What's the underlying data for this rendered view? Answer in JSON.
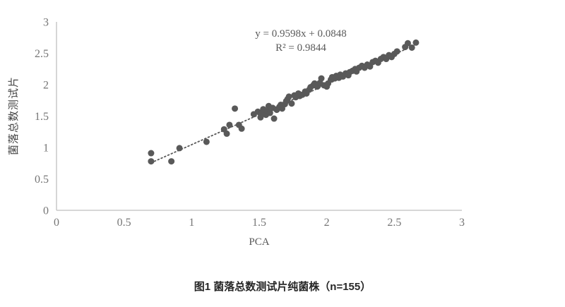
{
  "figure": {
    "caption": "图1 菌落总数测试片纯菌株（n=155）"
  },
  "chart_data": {
    "type": "scatter",
    "title": "",
    "xlabel": "PCA",
    "ylabel": "菌落总数测试片",
    "xlim": [
      0,
      3
    ],
    "ylim": [
      0,
      3
    ],
    "xticks": [
      "0",
      "0.5",
      "1",
      "1.5",
      "2",
      "2.5",
      "3"
    ],
    "yticks": [
      "0",
      "0.5",
      "1",
      "1.5",
      "2",
      "2.5",
      "3"
    ],
    "grid": false,
    "legend": "none",
    "annotation": {
      "equation": "y = 0.9598x + 0.0848",
      "r_squared": "R² = 0.9844"
    },
    "trendline": {
      "slope": 0.9598,
      "intercept": 0.0848,
      "x_start": 0.7,
      "x_end": 2.68,
      "style": "dotted"
    },
    "points": [
      [
        0.7,
        0.91
      ],
      [
        0.7,
        0.78
      ],
      [
        0.85,
        0.78
      ],
      [
        0.91,
        0.99
      ],
      [
        1.11,
        1.09
      ],
      [
        1.24,
        1.29
      ],
      [
        1.26,
        1.22
      ],
      [
        1.28,
        1.36
      ],
      [
        1.35,
        1.36
      ],
      [
        1.37,
        1.3
      ],
      [
        1.32,
        1.62
      ],
      [
        1.46,
        1.53
      ],
      [
        1.49,
        1.57
      ],
      [
        1.51,
        1.48
      ],
      [
        1.52,
        1.55
      ],
      [
        1.53,
        1.61
      ],
      [
        1.55,
        1.52
      ],
      [
        1.56,
        1.58
      ],
      [
        1.57,
        1.66
      ],
      [
        1.58,
        1.55
      ],
      [
        1.6,
        1.63
      ],
      [
        1.61,
        1.46
      ],
      [
        1.63,
        1.6
      ],
      [
        1.65,
        1.65
      ],
      [
        1.66,
        1.68
      ],
      [
        1.67,
        1.62
      ],
      [
        1.69,
        1.69
      ],
      [
        1.7,
        1.74
      ],
      [
        1.71,
        1.77
      ],
      [
        1.72,
        1.81
      ],
      [
        1.74,
        1.7
      ],
      [
        1.76,
        1.83
      ],
      [
        1.77,
        1.8
      ],
      [
        1.79,
        1.86
      ],
      [
        1.8,
        1.82
      ],
      [
        1.82,
        1.84
      ],
      [
        1.84,
        1.89
      ],
      [
        1.85,
        1.86
      ],
      [
        1.87,
        1.92
      ],
      [
        1.88,
        1.96
      ],
      [
        1.9,
        1.99
      ],
      [
        1.91,
        2.02
      ],
      [
        1.93,
        1.97
      ],
      [
        1.94,
        2.0
      ],
      [
        1.95,
        2.03
      ],
      [
        1.96,
        2.1
      ],
      [
        1.98,
        1.99
      ],
      [
        2.0,
        1.97
      ],
      [
        2.01,
        2.02
      ],
      [
        2.03,
        2.08
      ],
      [
        2.04,
        2.12
      ],
      [
        2.06,
        2.1
      ],
      [
        2.07,
        2.14
      ],
      [
        2.09,
        2.11
      ],
      [
        2.1,
        2.16
      ],
      [
        2.12,
        2.13
      ],
      [
        2.14,
        2.18
      ],
      [
        2.16,
        2.15
      ],
      [
        2.17,
        2.2
      ],
      [
        2.19,
        2.22
      ],
      [
        2.21,
        2.25
      ],
      [
        2.22,
        2.21
      ],
      [
        2.24,
        2.27
      ],
      [
        2.26,
        2.3
      ],
      [
        2.28,
        2.27
      ],
      [
        2.3,
        2.32
      ],
      [
        2.32,
        2.29
      ],
      [
        2.34,
        2.36
      ],
      [
        2.36,
        2.38
      ],
      [
        2.38,
        2.35
      ],
      [
        2.4,
        2.41
      ],
      [
        2.42,
        2.44
      ],
      [
        2.44,
        2.41
      ],
      [
        2.46,
        2.47
      ],
      [
        2.48,
        2.44
      ],
      [
        2.5,
        2.49
      ],
      [
        2.52,
        2.53
      ],
      [
        2.58,
        2.6
      ],
      [
        2.6,
        2.66
      ],
      [
        2.63,
        2.59
      ],
      [
        2.66,
        2.67
      ]
    ],
    "colors": {
      "marker": "#595959",
      "trendline": "#595959",
      "axis_line": "#bfbfbf",
      "tick_label": "#767676",
      "annotation_text": "#595959"
    },
    "marker_radius": 4.5
  }
}
